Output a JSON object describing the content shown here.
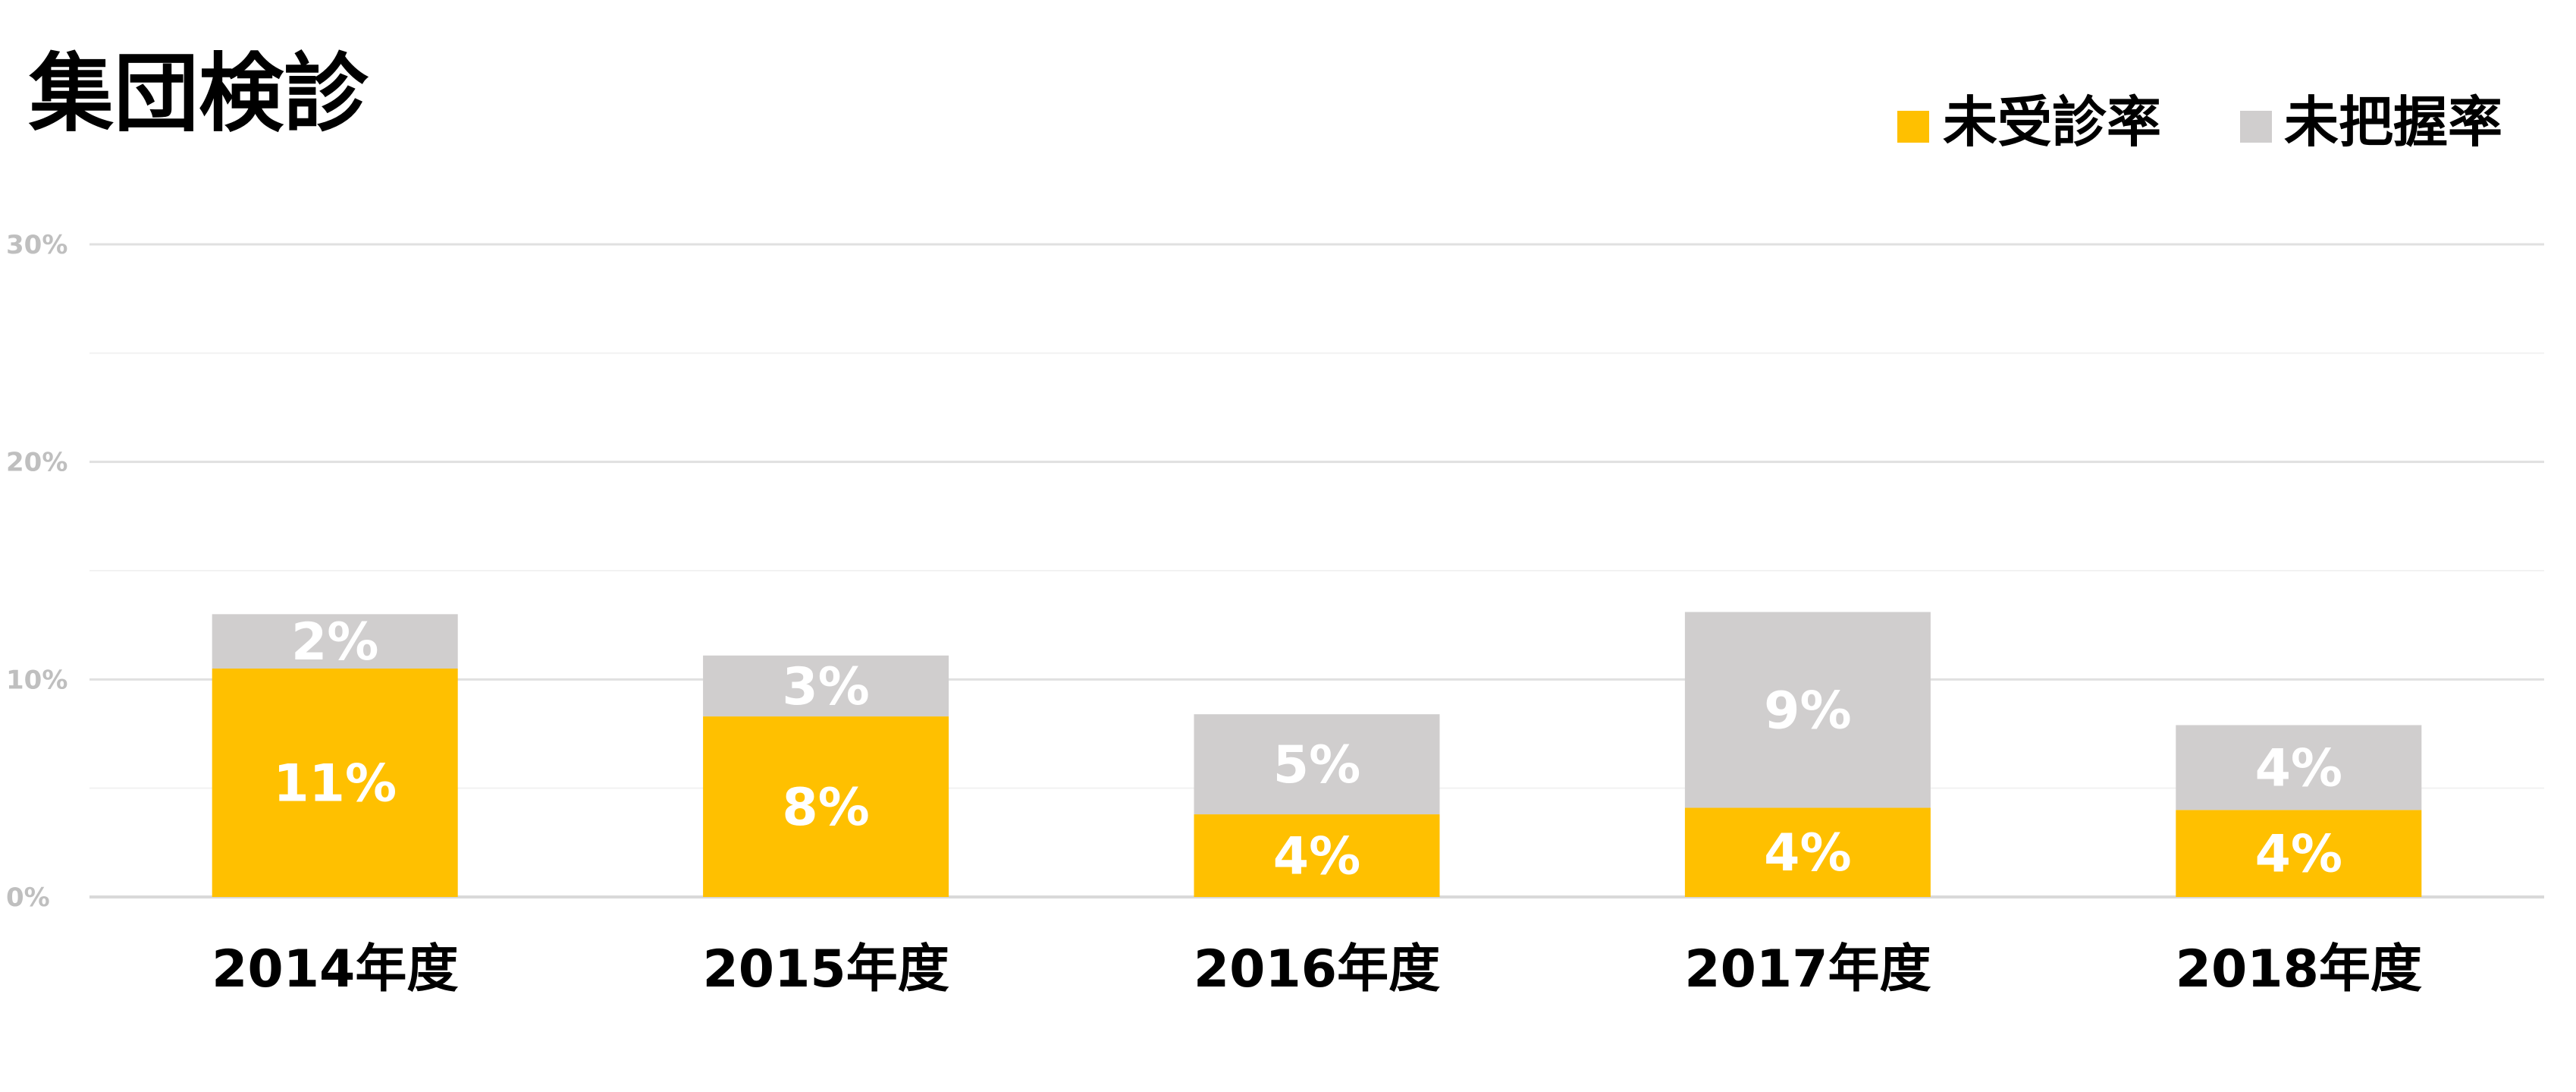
{
  "chart_data": {
    "type": "bar",
    "stacked": true,
    "title": "集団検診",
    "categories": [
      "2014年度",
      "2015年度",
      "2016年度",
      "2017年度",
      "2018年度"
    ],
    "series": [
      {
        "name": "未受診率",
        "color": "#FFC000",
        "values": [
          10.5,
          8.3,
          3.8,
          4.1,
          4.0
        ],
        "labels": [
          "11%",
          "8%",
          "4%",
          "4%",
          "4%"
        ]
      },
      {
        "name": "未把握率",
        "color": "#D0CECE",
        "values": [
          2.5,
          2.8,
          4.6,
          9.0,
          3.9
        ],
        "labels": [
          "2%",
          "3%",
          "5%",
          "9%",
          "4%"
        ]
      }
    ],
    "ylim": [
      0,
      30
    ],
    "yticks": [
      0,
      10,
      20,
      30
    ],
    "ytick_labels": [
      "0%",
      "10%",
      "20%",
      "30%"
    ],
    "grid": true,
    "legend": "top-right",
    "xlabel": "",
    "ylabel": ""
  }
}
